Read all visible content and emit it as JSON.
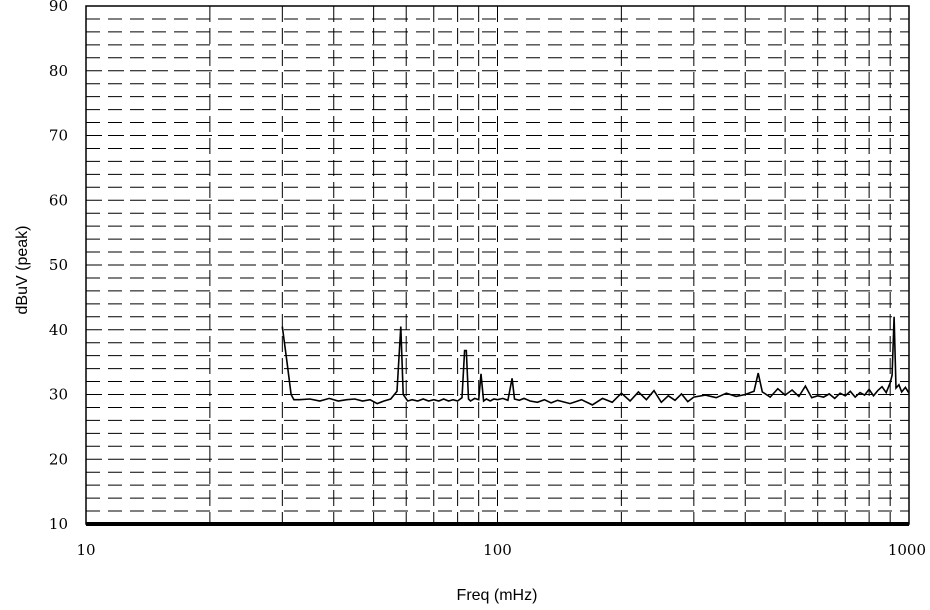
{
  "chart_data": {
    "type": "line",
    "title": "",
    "xlabel": "Freq (mHz)",
    "ylabel": "dBuV (peak)",
    "x_scale": "log",
    "xlim": [
      10,
      1000
    ],
    "ylim": [
      10,
      90
    ],
    "x_ticks": [
      10,
      100,
      1000
    ],
    "x_tick_labels": [
      "10",
      "100",
      "1000"
    ],
    "y_ticks": [
      10,
      20,
      30,
      40,
      50,
      60,
      70,
      80,
      90
    ],
    "y_tick_labels": [
      "10",
      "20",
      "30",
      "40",
      "50",
      "60",
      "70",
      "80",
      "90"
    ],
    "grid": true,
    "legend": "none",
    "series": [
      {
        "x": [
          30,
          30.8,
          31.5,
          32,
          33,
          35,
          37,
          39,
          41,
          43,
          45,
          47,
          49,
          51,
          53,
          55,
          57,
          58.2,
          59,
          60.5,
          62,
          64,
          66,
          68,
          70,
          72,
          74,
          76,
          78,
          80,
          82,
          83.2,
          84,
          85,
          86,
          88,
          90,
          91.2,
          92.5,
          94,
          96,
          98,
          100,
          103,
          106,
          108.5,
          110,
          113,
          116,
          120,
          125,
          130,
          135,
          140,
          150,
          160,
          170,
          180,
          190,
          200,
          210,
          220,
          230,
          240,
          250,
          260,
          270,
          280,
          290,
          300,
          320,
          340,
          360,
          380,
          400,
          420,
          430,
          440,
          460,
          480,
          500,
          520,
          540,
          560,
          580,
          600,
          620,
          640,
          660,
          680,
          700,
          720,
          740,
          760,
          780,
          800,
          820,
          840,
          860,
          880,
          900,
          910,
          920,
          930,
          945,
          960,
          980,
          1000
        ],
        "y": [
          40.5,
          35,
          30,
          29.2,
          29.2,
          29.3,
          29,
          29.4,
          29,
          29.2,
          29.3,
          29,
          29.2,
          28.6,
          29,
          29.3,
          30.5,
          40.5,
          30,
          29,
          29.2,
          29,
          29.3,
          29,
          29.2,
          29,
          29.3,
          29,
          29.2,
          29,
          29.5,
          36.8,
          36.8,
          29.3,
          29,
          29.4,
          29.2,
          33.2,
          29,
          29.3,
          29,
          29.3,
          29.2,
          29.4,
          29.1,
          32.5,
          29.3,
          29.1,
          29.4,
          29,
          28.8,
          29.2,
          28.7,
          29.1,
          28.6,
          29.2,
          28.4,
          29.4,
          28.8,
          30.2,
          29,
          30.4,
          29.2,
          30.6,
          28.8,
          29.8,
          29.1,
          30.1,
          28.9,
          29.6,
          29.9,
          29.5,
          30.2,
          29.7,
          30,
          30.5,
          33.3,
          30.4,
          29.6,
          30.9,
          29.9,
          30.7,
          29.7,
          31.3,
          29.5,
          29.8,
          29.6,
          30.1,
          29.4,
          30.2,
          29.8,
          30.5,
          29.6,
          30.3,
          29.9,
          30.8,
          29.8,
          30.6,
          31.2,
          30.3,
          31.8,
          33,
          42,
          31,
          31.5,
          30.4,
          31.1,
          30.2
        ]
      }
    ]
  }
}
